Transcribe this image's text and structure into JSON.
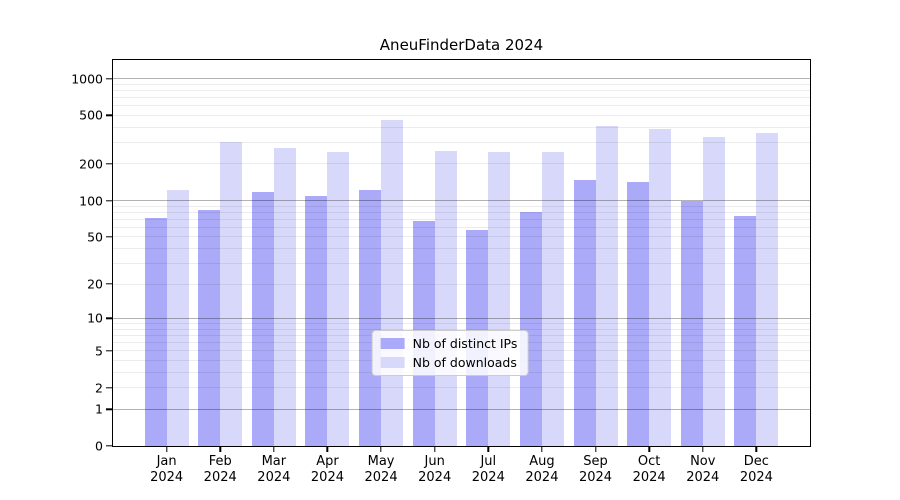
{
  "title": "AneuFinderData 2024",
  "chart_data": {
    "type": "bar",
    "title": "AneuFinderData 2024",
    "yscale": "log1p",
    "grid": "on",
    "legend_position": "lower center",
    "categories": [
      "Jan",
      "Feb",
      "Mar",
      "Apr",
      "May",
      "Jun",
      "Jul",
      "Aug",
      "Sep",
      "Oct",
      "Nov",
      "Dec"
    ],
    "category_year": "2024",
    "series": [
      {
        "name": "Nb of distinct IPs",
        "color": "#aaaaf9",
        "values": [
          72,
          83,
          117,
          108,
          121,
          68,
          57,
          80,
          148,
          142,
          100,
          75
        ]
      },
      {
        "name": "Nb of downloads",
        "color": "#d8d8fa",
        "values": [
          121,
          301,
          269,
          249,
          457,
          255,
          251,
          251,
          413,
          390,
          333,
          362
        ]
      }
    ],
    "yticks": [
      0,
      1,
      2,
      5,
      10,
      20,
      50,
      100,
      200,
      500,
      1000
    ],
    "ylim": [
      0,
      1418
    ],
    "xlabel": "",
    "ylabel": ""
  },
  "legend": {
    "items": [
      {
        "label": "Nb of distinct IPs",
        "color": "#aaaaf9"
      },
      {
        "label": "Nb of downloads",
        "color": "#d8d8fa"
      }
    ]
  }
}
